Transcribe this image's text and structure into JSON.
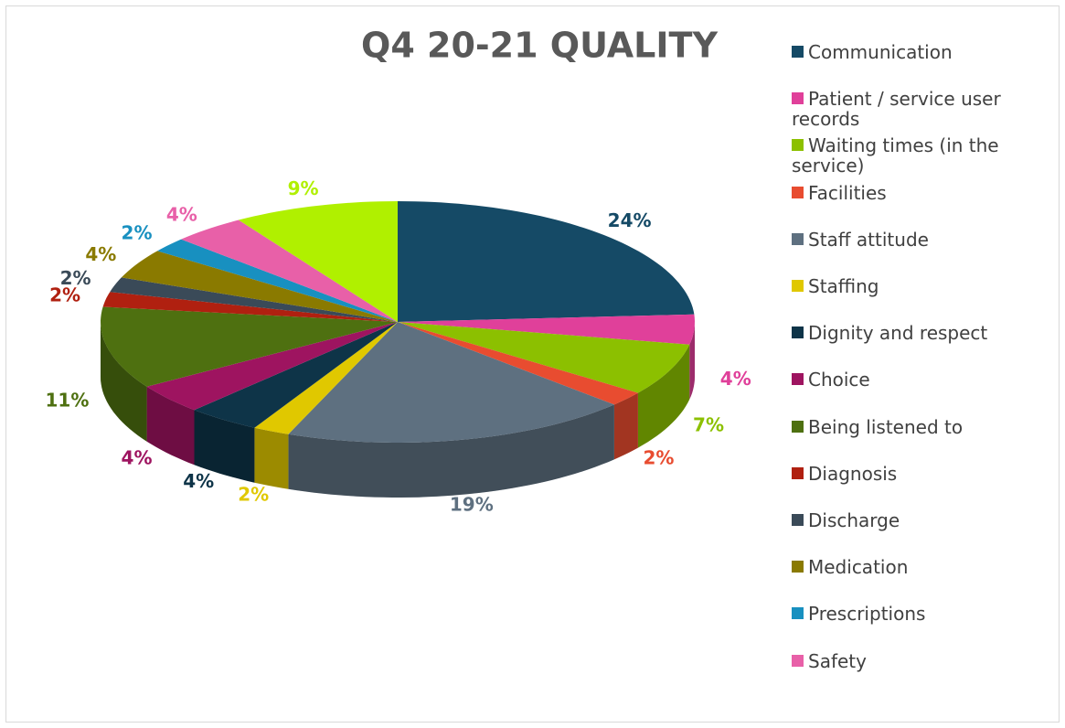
{
  "chart_data": {
    "type": "pie",
    "title": "Q4 20-21 QUALITY",
    "categories": [
      "Communication",
      "Patient / service user records",
      "Waiting times (in the service)",
      "Facilities",
      "Staff attitude",
      "Staffing",
      "Dignity and respect",
      "Choice",
      "Being listened to",
      "Diagnosis",
      "Discharge",
      "Medication",
      "Prescriptions",
      "Safety",
      null
    ],
    "values": [
      24,
      4,
      7,
      2,
      19,
      2,
      4,
      4,
      11,
      2,
      2,
      4,
      2,
      4,
      9
    ],
    "value_labels": [
      "24%",
      "4%",
      "7%",
      "2%",
      "19%",
      "2%",
      "4%",
      "4%",
      "11%",
      "2%",
      "2%",
      "4%",
      "2%",
      "4%",
      "9%"
    ],
    "colors": [
      "#154a66",
      "#e0409a",
      "#8cc000",
      "#e84c30",
      "#5e7080",
      "#e0c800",
      "#0e3448",
      "#9e1460",
      "#4e7010",
      "#b02010",
      "#3a4a58",
      "#8a7a00",
      "#1890c0",
      "#e860a8",
      "#b0f000"
    ],
    "legend": "right"
  }
}
